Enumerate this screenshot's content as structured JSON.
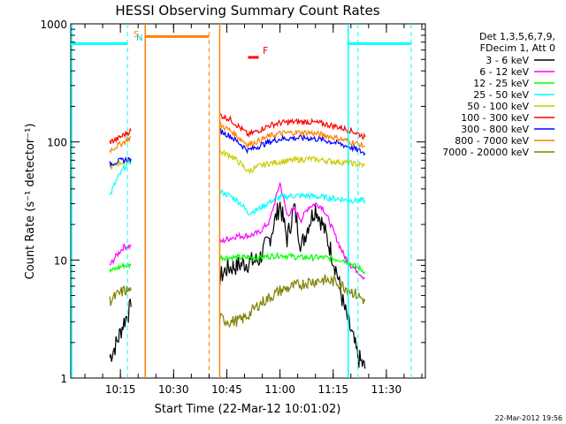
{
  "chart_data": {
    "type": "line",
    "title": "HESSI Observing Summary Count Rates",
    "xlabel": "Start Time (22-Mar-12 10:01:02)",
    "ylabel": "Count Rate (s⁻¹ detector⁻¹)",
    "yscale": "log",
    "ylim": [
      1,
      1000
    ],
    "xlim": [
      "10:01",
      "11:41"
    ],
    "x_ticks": [
      "10:15",
      "10:30",
      "10:45",
      "11:00",
      "11:15",
      "11:30"
    ],
    "y_ticks": [
      "1",
      "10",
      "100",
      "1000"
    ],
    "grid": false,
    "legend_position": "top-right",
    "legend_header": [
      "Det 1,3,5,6,7,9,",
      "FDecim 1, Att 0"
    ],
    "timestamp": "22-Mar-2012 19:56",
    "annotations": {
      "saa_flag": "S",
      "night_flag": "N",
      "flare_flag": "F"
    },
    "markers": {
      "night_level": 680,
      "night_intervals": [
        [
          "10:01",
          "10:17"
        ],
        [
          "11:19",
          "11:37"
        ]
      ],
      "saa_level": 780,
      "saa_interval": [
        "10:22",
        "10:40"
      ],
      "flare_interval": [
        "10:51",
        "10:54"
      ],
      "flare_level": 520,
      "cyan_dashed_times": [
        "10:17",
        "11:22",
        "11:37"
      ],
      "orange_dashed_times": [
        "10:40"
      ],
      "solid_cyan_times": [
        "10:01",
        "11:19"
      ],
      "solid_orange_times": [
        "10:22",
        "10:43"
      ]
    },
    "data_intervals": [
      [
        "10:12",
        "10:19"
      ],
      [
        "10:43",
        "11:24"
      ]
    ],
    "series": [
      {
        "name": "3 - 6 keV",
        "color": "#000000",
        "x": [
          "10:12",
          "10:14",
          "10:16",
          "10:18",
          "10:43",
          "10:45",
          "10:48",
          "10:51",
          "10:54",
          "10:57",
          "11:00",
          "11:02",
          "11:04",
          "11:06",
          "11:08",
          "11:10",
          "11:12",
          "11:14",
          "11:16",
          "11:18",
          "11:20",
          "11:22",
          "11:24"
        ],
        "values": [
          1.5,
          2.0,
          3.0,
          4.0,
          7.0,
          8.5,
          9.0,
          9.5,
          10,
          15,
          30,
          15,
          28,
          13,
          20,
          28,
          20,
          13,
          8,
          4,
          2.5,
          1.5,
          1.2
        ]
      },
      {
        "name": "6 - 12 keV",
        "color": "#ff00ff",
        "x": [
          "10:12",
          "10:14",
          "10:16",
          "10:18",
          "10:43",
          "10:45",
          "10:48",
          "10:51",
          "10:54",
          "10:57",
          "11:00",
          "11:02",
          "11:04",
          "11:06",
          "11:08",
          "11:10",
          "11:12",
          "11:14",
          "11:16",
          "11:18",
          "11:20",
          "11:22",
          "11:24"
        ],
        "values": [
          9,
          11,
          13,
          13,
          14,
          15,
          16,
          16,
          17,
          21,
          45,
          24,
          27,
          22,
          28,
          30,
          28,
          21,
          15,
          11,
          9,
          8,
          7
        ]
      },
      {
        "name": "12 - 25 keV",
        "color": "#00ff00",
        "x": [
          "10:12",
          "10:16",
          "10:18",
          "10:43",
          "10:48",
          "10:54",
          "11:00",
          "11:06",
          "11:12",
          "11:18",
          "11:24"
        ],
        "values": [
          8,
          9,
          9,
          10.5,
          10.5,
          10.5,
          11,
          10.5,
          10.5,
          10,
          8
        ]
      },
      {
        "name": "25 - 50 keV",
        "color": "#00ffff",
        "x": [
          "10:12",
          "10:14",
          "10:16",
          "10:18",
          "10:43",
          "10:46",
          "10:49",
          "10:51",
          "10:54",
          "10:57",
          "11:00",
          "11:04",
          "11:08",
          "11:12",
          "11:16",
          "11:20",
          "11:24"
        ],
        "values": [
          35,
          48,
          60,
          70,
          38,
          35,
          30,
          25,
          27,
          31,
          34,
          35,
          35,
          34,
          33,
          32,
          32
        ]
      },
      {
        "name": "50 - 100 keV",
        "color": "#cccc00",
        "x": [
          "10:12",
          "10:14",
          "10:16",
          "10:18",
          "10:43",
          "10:46",
          "10:49",
          "10:51",
          "10:54",
          "10:57",
          "11:00",
          "11:04",
          "11:08",
          "11:12",
          "11:16",
          "11:20",
          "11:24"
        ],
        "values": [
          60,
          65,
          68,
          72,
          82,
          77,
          65,
          56,
          62,
          66,
          68,
          70,
          72,
          70,
          68,
          66,
          63
        ]
      },
      {
        "name": "100 - 300 keV",
        "color": "#ff0000",
        "x": [
          "10:12",
          "10:14",
          "10:16",
          "10:18",
          "10:43",
          "10:46",
          "10:49",
          "10:51",
          "10:54",
          "10:57",
          "11:00",
          "11:04",
          "11:08",
          "11:12",
          "11:16",
          "11:20",
          "11:24"
        ],
        "values": [
          100,
          105,
          115,
          125,
          170,
          155,
          130,
          115,
          125,
          138,
          145,
          148,
          148,
          143,
          135,
          125,
          110
        ]
      },
      {
        "name": "300 - 800 keV",
        "color": "#0000ff",
        "x": [
          "10:12",
          "10:14",
          "10:16",
          "10:18",
          "10:43",
          "10:46",
          "10:49",
          "10:51",
          "10:54",
          "10:57",
          "11:00",
          "11:04",
          "11:08",
          "11:12",
          "11:16",
          "11:20",
          "11:24"
        ],
        "values": [
          65,
          68,
          70,
          72,
          125,
          112,
          95,
          85,
          92,
          100,
          106,
          108,
          108,
          104,
          98,
          90,
          80
        ]
      },
      {
        "name": "800 - 7000 keV",
        "color": "#ff8000",
        "x": [
          "10:12",
          "10:14",
          "10:16",
          "10:18",
          "10:43",
          "10:46",
          "10:49",
          "10:51",
          "10:54",
          "10:57",
          "11:00",
          "11:04",
          "11:08",
          "11:12",
          "11:16",
          "11:20",
          "11:24"
        ],
        "values": [
          85,
          92,
          100,
          110,
          140,
          125,
          105,
          95,
          102,
          112,
          118,
          120,
          120,
          115,
          108,
          100,
          92
        ]
      },
      {
        "name": "7000 - 20000 keV",
        "color": "#808000",
        "x": [
          "10:12",
          "10:14",
          "10:16",
          "10:18",
          "10:43",
          "10:46",
          "10:49",
          "10:51",
          "10:54",
          "10:57",
          "11:00",
          "11:04",
          "11:08",
          "11:12",
          "11:16",
          "11:20",
          "11:24"
        ],
        "values": [
          4.5,
          5,
          5.5,
          5.5,
          3.2,
          3.0,
          3.1,
          3.4,
          4.2,
          4.8,
          5.5,
          6.0,
          6.5,
          6.8,
          6.5,
          5.5,
          4.5
        ]
      }
    ]
  }
}
